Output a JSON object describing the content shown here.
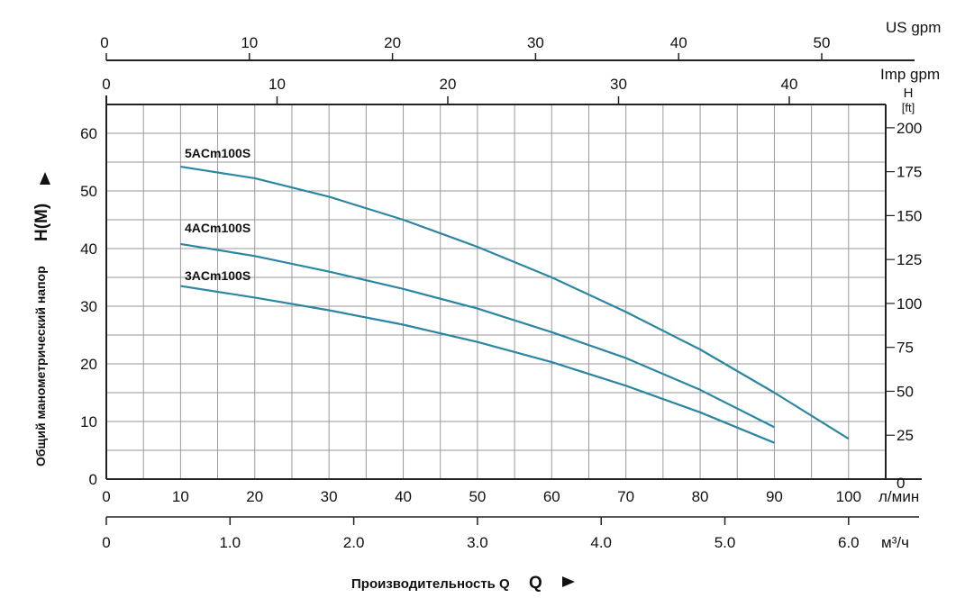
{
  "chart_data": {
    "type": "line",
    "title": "",
    "xlabel": "Производительность Q",
    "ylabel": "Общий манометрический напор",
    "ylabel_symbol": "H(M)",
    "x_unit": "л/мин",
    "xlim": [
      0,
      105
    ],
    "ylim": [
      0,
      65
    ],
    "x_ticks": [
      0,
      10,
      20,
      30,
      40,
      50,
      60,
      70,
      80,
      90,
      100
    ],
    "y_ticks": [
      0,
      10,
      20,
      30,
      40,
      50,
      60
    ],
    "grid": true,
    "secondary_axes": {
      "us_gpm": {
        "label": "US gpm",
        "ticks": [
          0,
          10,
          20,
          30,
          40,
          50
        ]
      },
      "imp_gpm": {
        "label": "Imp gpm",
        "ticks": [
          0,
          10,
          20,
          30,
          40
        ]
      },
      "head_ft": {
        "label_top": "H",
        "label_unit": "[ft]",
        "ticks": [
          0,
          25,
          50,
          75,
          100,
          125,
          150,
          175,
          200
        ]
      },
      "m3h": {
        "label": "м³/ч",
        "ticks": [
          "0",
          "1.0",
          "2.0",
          "3.0",
          "4.0",
          "5.0",
          "6.0"
        ],
        "values": [
          0,
          1,
          2,
          3,
          4,
          5,
          6
        ]
      }
    },
    "series": [
      {
        "name": "5ACm100S",
        "color": "#2b86a3",
        "x": [
          10,
          20,
          30,
          40,
          50,
          60,
          70,
          80,
          90,
          100
        ],
        "y": [
          54.2,
          52.2,
          49,
          45,
          40.3,
          35,
          29,
          22.5,
          15,
          7
        ]
      },
      {
        "name": "4ACm100S",
        "color": "#2b86a3",
        "x": [
          10,
          20,
          30,
          40,
          50,
          60,
          70,
          80,
          90
        ],
        "y": [
          40.8,
          38.7,
          36,
          33,
          29.6,
          25.5,
          21,
          15.5,
          9
        ]
      },
      {
        "name": "3ACm100S",
        "color": "#2b86a3",
        "x": [
          10,
          20,
          30,
          40,
          50,
          60,
          70,
          80,
          90
        ],
        "y": [
          33.5,
          31.5,
          29.3,
          26.8,
          23.8,
          20.3,
          16.2,
          11.6,
          6.3
        ]
      }
    ]
  }
}
